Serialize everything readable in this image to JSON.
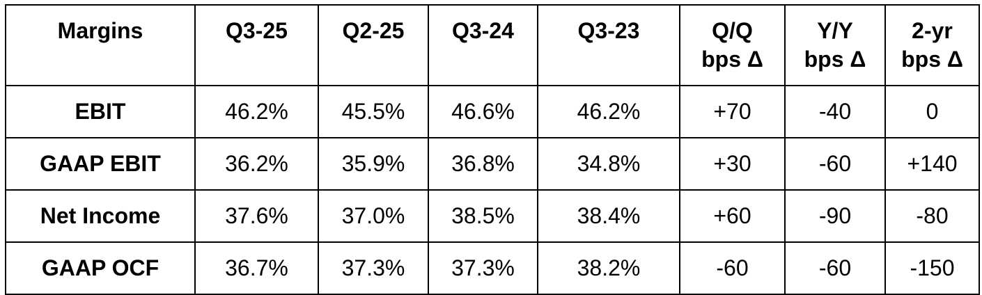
{
  "table": {
    "headers": {
      "label": "Margins",
      "q3_25": "Q3-25",
      "q2_25": "Q2-25",
      "q3_24": "Q3-24",
      "q3_23": "Q3-23",
      "qq_line1": "Q/Q",
      "qq_line2": "bps Δ",
      "yy_line1": "Y/Y",
      "yy_line2": "bps Δ",
      "yr2_line1": "2-yr",
      "yr2_line2": "bps Δ"
    },
    "rows": [
      {
        "label": "EBIT",
        "q3_25": "46.2%",
        "q2_25": "45.5%",
        "q3_24": "46.6%",
        "q3_23": "46.2%",
        "qq": "+70",
        "yy": "-40",
        "yr2": "0"
      },
      {
        "label": "GAAP EBIT",
        "q3_25": "36.2%",
        "q2_25": "35.9%",
        "q3_24": "36.8%",
        "q3_23": "34.8%",
        "qq": "+30",
        "yy": "-60",
        "yr2": "+140"
      },
      {
        "label": "Net Income",
        "q3_25": "37.6%",
        "q2_25": "37.0%",
        "q3_24": "38.5%",
        "q3_23": "38.4%",
        "qq": "+60",
        "yy": "-90",
        "yr2": "-80"
      },
      {
        "label": "GAAP OCF",
        "q3_25": "36.7%",
        "q2_25": "37.3%",
        "q3_24": "37.3%",
        "q3_23": "38.2%",
        "qq": "-60",
        "yy": "-60",
        "yr2": "-150"
      }
    ]
  }
}
